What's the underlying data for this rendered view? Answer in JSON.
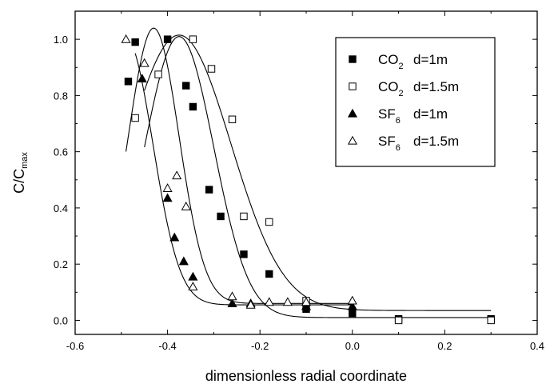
{
  "chart_data": {
    "type": "scatter",
    "xlabel": "dimensionless radial coordinate",
    "ylabel": {
      "main": "C/C",
      "sub": "max"
    },
    "xlim": [
      -0.6,
      0.4
    ],
    "ylim": [
      -0.05,
      1.1
    ],
    "xticks": [
      "-0.6",
      "-0.4",
      "-0.2",
      "0.0",
      "0.2",
      "0.4"
    ],
    "yticks": [
      "0.0",
      "0.2",
      "0.4",
      "0.6",
      "0.8",
      "1.0"
    ],
    "xtick_values": [
      -0.6,
      -0.4,
      -0.2,
      0.0,
      0.2,
      0.4
    ],
    "ytick_values": [
      0.0,
      0.2,
      0.4,
      0.6,
      0.8,
      1.0
    ],
    "grid": false,
    "legend_position": "top-right",
    "series": [
      {
        "name": {
          "main": "CO",
          "sub": "2",
          "param": "d=1m"
        },
        "marker": "square-filled",
        "x": [
          -0.485,
          -0.47,
          -0.4,
          -0.36,
          -0.345,
          -0.31,
          -0.285,
          -0.235,
          -0.18,
          -0.1,
          0.0,
          0.1,
          0.3
        ],
        "y": [
          0.85,
          0.99,
          1.0,
          0.835,
          0.76,
          0.465,
          0.37,
          0.235,
          0.165,
          0.04,
          0.025,
          0.005,
          0.005
        ],
        "fit": {
          "type": "gaussian",
          "center": -0.375,
          "sigma": 0.075,
          "amplitude": 1.0,
          "baseline": 0.01,
          "x_range": [
            -0.45,
            0.3
          ]
        }
      },
      {
        "name": {
          "main": "CO",
          "sub": "2",
          "param": "d=1.5m"
        },
        "marker": "square-open",
        "x": [
          -0.47,
          -0.42,
          -0.345,
          -0.305,
          -0.26,
          -0.235,
          -0.18,
          -0.1,
          0.1,
          0.3
        ],
        "y": [
          0.72,
          0.875,
          1.0,
          0.895,
          0.715,
          0.37,
          0.35,
          0.07,
          0.0,
          0.0
        ],
        "fit": {
          "type": "gaussian",
          "center": -0.375,
          "sigma": 0.112,
          "amplitude": 0.98,
          "baseline": 0.035,
          "x_range": [
            -0.45,
            0.3
          ]
        }
      },
      {
        "name": {
          "main": "SF",
          "sub": "6",
          "param": "d=1m"
        },
        "marker": "triangle-filled",
        "x": [
          -0.455,
          -0.4,
          -0.385,
          -0.365,
          -0.345,
          -0.26,
          -0.22,
          -0.1,
          0.0
        ],
        "y": [
          0.86,
          0.435,
          0.295,
          0.21,
          0.155,
          0.06,
          0.06,
          0.05,
          0.05
        ],
        "fit": {
          "type": "gaussian",
          "center": -0.49,
          "sigma": 0.058,
          "amplitude": 0.95,
          "baseline": 0.055,
          "x_range": [
            -0.47,
            0.0
          ]
        }
      },
      {
        "name": {
          "main": "SF",
          "sub": "6",
          "param": "d=1.5m"
        },
        "marker": "triangle-open",
        "x": [
          -0.49,
          -0.45,
          -0.4,
          -0.38,
          -0.36,
          -0.345,
          -0.26,
          -0.22,
          -0.18,
          -0.14,
          -0.1,
          0.0
        ],
        "y": [
          1.0,
          0.915,
          0.47,
          0.515,
          0.405,
          0.12,
          0.085,
          0.055,
          0.065,
          0.065,
          0.065,
          0.07
        ],
        "fit": {
          "type": "gaussian",
          "center": -0.43,
          "sigma": 0.055,
          "amplitude": 0.98,
          "baseline": 0.06,
          "x_range": [
            -0.49,
            0.0
          ]
        }
      }
    ]
  }
}
